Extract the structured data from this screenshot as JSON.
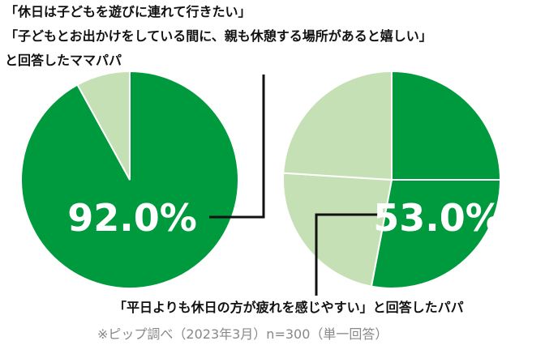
{
  "chart_data": [
    {
      "type": "pie",
      "values": [
        92,
        8
      ],
      "colors": [
        "#009a3e",
        "#c5e0b4"
      ],
      "center_label": "92.0%",
      "annotations": [
        "「休日は子どもを遊びに連れて行きたい」",
        "「子どもとお出かけをしている間に、親も休憩する場所があると嬉しい」",
        "と回答したママパパ"
      ]
    },
    {
      "type": "pie",
      "values": [
        25,
        28,
        23,
        24
      ],
      "colors": [
        "#009a3e",
        "#009a3e",
        "#c5e0b4",
        "#c5e0b4"
      ],
      "center_label": "53.0%",
      "annotations": [
        "「平日よりも休日の方が疲れを感じやすい」と回答したパパ"
      ]
    }
  ],
  "source": "※ピップ調べ（2023年3月）n=300（単一回答）"
}
